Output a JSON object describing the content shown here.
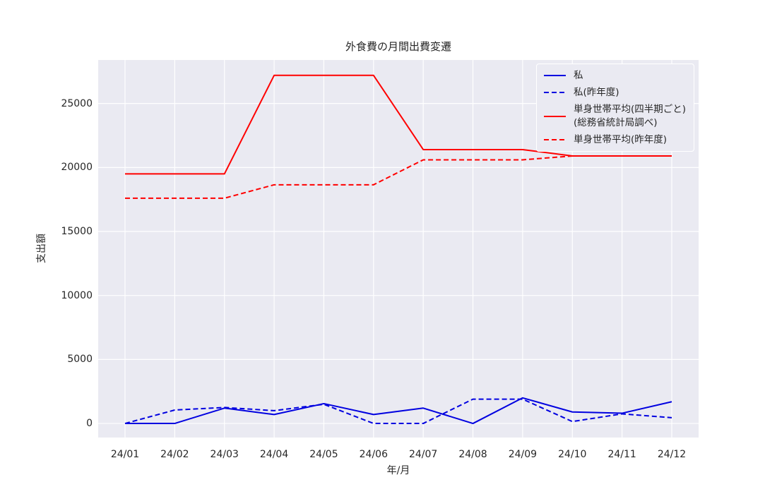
{
  "chart_data": {
    "type": "line",
    "title": "外食費の月間出費変遷",
    "xlabel": "年/月",
    "ylabel": "支出額",
    "categories": [
      "24/01",
      "24/02",
      "24/03",
      "24/04",
      "24/05",
      "24/06",
      "24/07",
      "24/08",
      "24/09",
      "24/10",
      "24/11",
      "24/12"
    ],
    "yticks": [
      0,
      5000,
      10000,
      15000,
      20000,
      25000
    ],
    "ylim": [
      -1100,
      28400
    ],
    "grid": true,
    "legend_position": "upper right",
    "series": [
      {
        "name": "私",
        "color": "#0000e0",
        "dash": false,
        "values": [
          0,
          0,
          1200,
          700,
          1550,
          700,
          1200,
          0,
          2000,
          900,
          800,
          1700
        ]
      },
      {
        "name": "私(昨年度)",
        "color": "#0000e0",
        "dash": true,
        "values": [
          0,
          1050,
          1250,
          1000,
          1500,
          0,
          0,
          1900,
          1900,
          150,
          750,
          450
        ]
      },
      {
        "name": "単身世帯平均(四半期ごと)\n(総務省統計局調べ)",
        "color": "#ff0000",
        "dash": false,
        "values": [
          19500,
          19500,
          19500,
          27200,
          27200,
          27200,
          21400,
          21400,
          21400,
          20900,
          20900,
          20900
        ]
      },
      {
        "name": "単身世帯平均(昨年度)",
        "color": "#ff0000",
        "dash": true,
        "values": [
          17600,
          17600,
          17600,
          18650,
          18650,
          18650,
          20600,
          20600,
          20600,
          20900,
          20900,
          20900
        ]
      }
    ],
    "colors": {
      "plot_bg": "#eaeaf2",
      "grid": "#ffffff",
      "text": "#262626",
      "figure_bg": "#ffffff"
    }
  }
}
